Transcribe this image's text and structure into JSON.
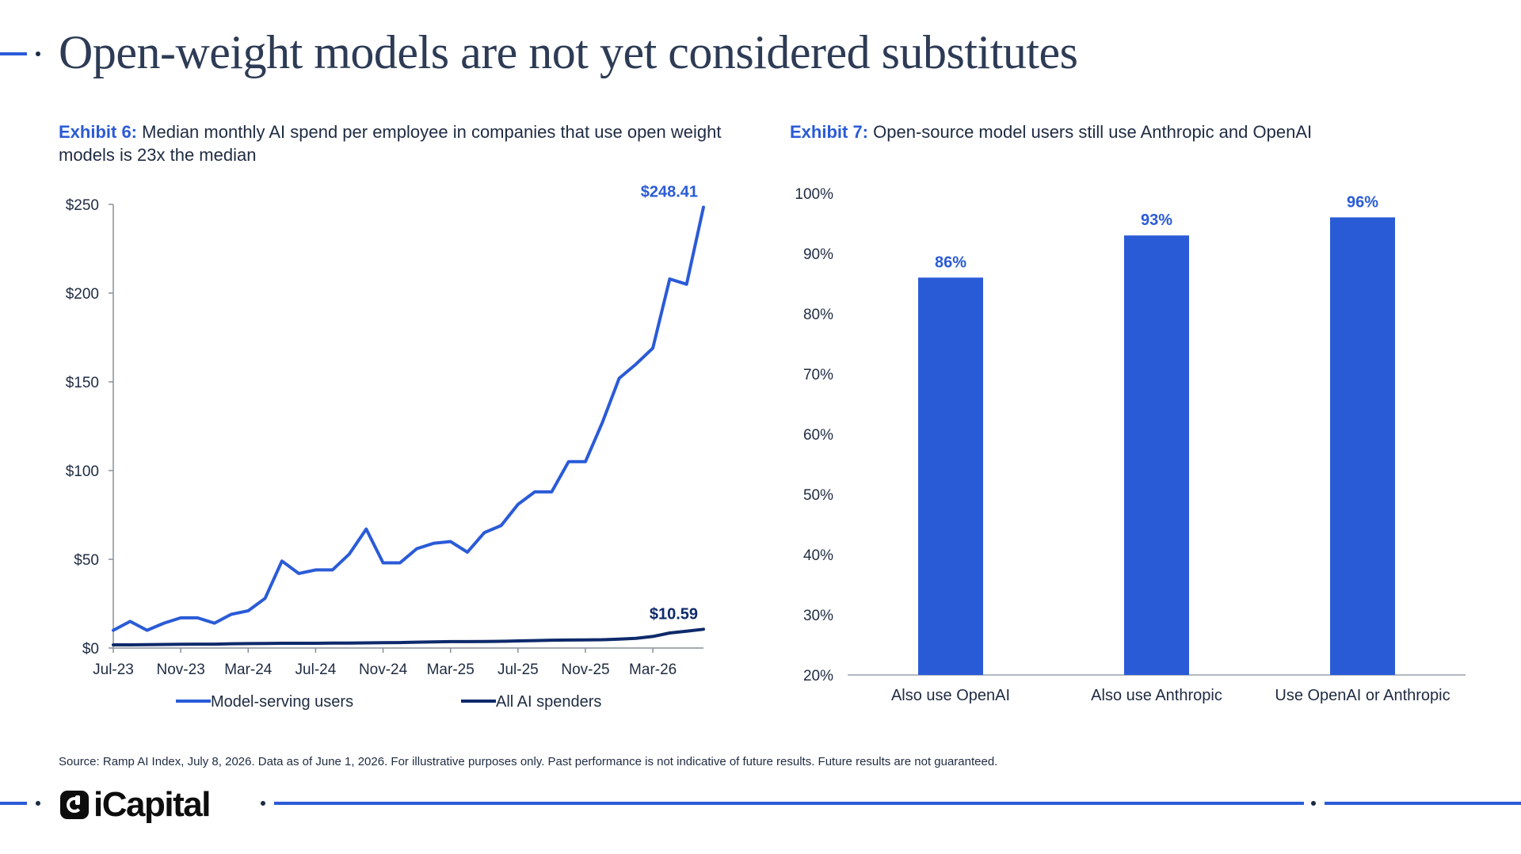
{
  "page": {
    "title": "Open-weight models are not yet considered substitutes",
    "source": "Source: Ramp AI Index, July 8, 2026. Data as of June 1, 2026. For illustrative purposes only. Past performance is not indicative of future results. Future results are not guaranteed.",
    "logo_text": "iCapital"
  },
  "colors": {
    "accent": "#2a5bd7",
    "dark_navy": "#0e2a6b",
    "text": "#1f2b42"
  },
  "exhibit6": {
    "label": "Exhibit 6:",
    "text": "Median monthly AI spend per employee in companies that use open weight models is 23x the median"
  },
  "exhibit7": {
    "label": "Exhibit 7:",
    "text": "Open-source model users still use Anthropic and OpenAI"
  },
  "chart_data": [
    {
      "type": "line",
      "xlabel": "",
      "ylabel": "",
      "ylim": [
        0,
        250
      ],
      "y_ticks": [
        "$0",
        "$50",
        "$100",
        "$150",
        "$200",
        "$250"
      ],
      "x_ticks": [
        "Jul-23",
        "Nov-23",
        "Mar-24",
        "Jul-24",
        "Nov-24",
        "Mar-25",
        "Jul-25",
        "Nov-25",
        "Mar-26"
      ],
      "grid": false,
      "legend": "bottom",
      "x_start": "2023-07",
      "x_end": "2026-06",
      "series": [
        {
          "name": "Model-serving users",
          "color": "#2a5bd7",
          "end_label": "$248.41",
          "values": [
            10,
            15,
            10,
            14,
            17,
            17,
            14,
            19,
            21,
            28,
            49,
            42,
            44,
            44,
            53,
            67,
            48,
            48,
            56,
            59,
            60,
            54,
            65,
            69,
            81,
            88,
            88,
            105,
            105,
            127,
            152,
            160,
            169,
            208,
            205,
            248.41
          ]
        },
        {
          "name": "All AI spenders",
          "color": "#0e2a6b",
          "end_label": "$10.59",
          "values": [
            1.8,
            1.8,
            1.9,
            2.0,
            2.1,
            2.2,
            2.2,
            2.4,
            2.5,
            2.6,
            2.7,
            2.7,
            2.7,
            2.8,
            2.8,
            2.9,
            3.0,
            3.1,
            3.3,
            3.5,
            3.6,
            3.6,
            3.7,
            3.8,
            4.0,
            4.2,
            4.4,
            4.5,
            4.6,
            4.7,
            5.0,
            5.5,
            6.5,
            8.5,
            9.5,
            10.59
          ]
        }
      ]
    },
    {
      "type": "bar",
      "xlabel": "",
      "ylabel": "",
      "ylim": [
        20,
        100
      ],
      "y_ticks": [
        "20%",
        "30%",
        "40%",
        "50%",
        "60%",
        "70%",
        "80%",
        "90%",
        "100%"
      ],
      "grid": false,
      "categories": [
        "Also use OpenAI",
        "Also use Anthropic",
        "Use OpenAI or Anthropic"
      ],
      "values": [
        86,
        93,
        96
      ],
      "data_labels": [
        "86%",
        "93%",
        "96%"
      ],
      "color": "#2a5bd7"
    }
  ]
}
